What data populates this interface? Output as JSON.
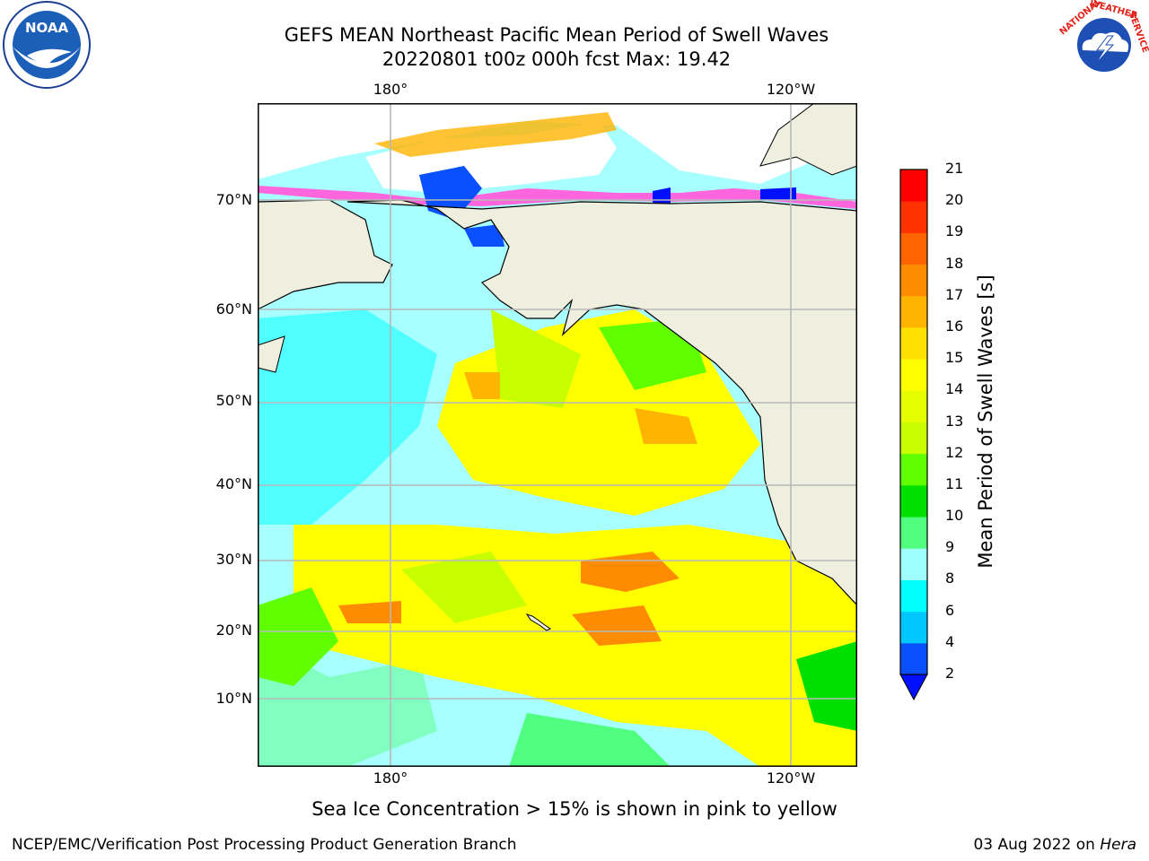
{
  "title": {
    "line1": "GEFS MEAN Northeast Pacific Mean Period of Swell Waves",
    "line2": "20220801 t00z 000h fcst   Max: 19.42"
  },
  "axes": {
    "lon_labels": [
      "180°",
      "120°W"
    ],
    "lat_labels": [
      "70°N",
      "60°N",
      "50°N",
      "40°N",
      "30°N",
      "20°N",
      "10°N"
    ]
  },
  "colorbar": {
    "label": "Mean Period of Swell Waves [s]",
    "ticks": [
      "2",
      "4",
      "6",
      "8",
      "9",
      "10",
      "11",
      "12",
      "13",
      "14",
      "15",
      "16",
      "17",
      "18",
      "19",
      "20",
      "21"
    ],
    "colors": [
      "#0a50ff",
      "#00c8ff",
      "#00ffff",
      "#a0ffff",
      "#50ff80",
      "#00e000",
      "#60ff00",
      "#c8ff00",
      "#e6ff00",
      "#ffff00",
      "#ffe000",
      "#ffb400",
      "#ff8c00",
      "#ff6400",
      "#ff3200",
      "#ff0000"
    ],
    "under_color": "#0010ff"
  },
  "caption": "Sea Ice Concentration > 15% is shown in pink to yellow",
  "footer": {
    "left": "NCEP/EMC/Verification Post Processing Product Generation Branch",
    "right_date": "03 Aug 2022 on",
    "right_host": "Hera"
  },
  "logos": {
    "left": "noaa-logo",
    "right": "nws-logo",
    "nws_text": "NATIONAL WEATHER SERVICE"
  },
  "colors": {
    "land": "#efefdf",
    "coast": "#000000",
    "grid": "#b8b8b8",
    "ocean_base": "#a8ffff",
    "ice_pink": "#ff66dd"
  }
}
